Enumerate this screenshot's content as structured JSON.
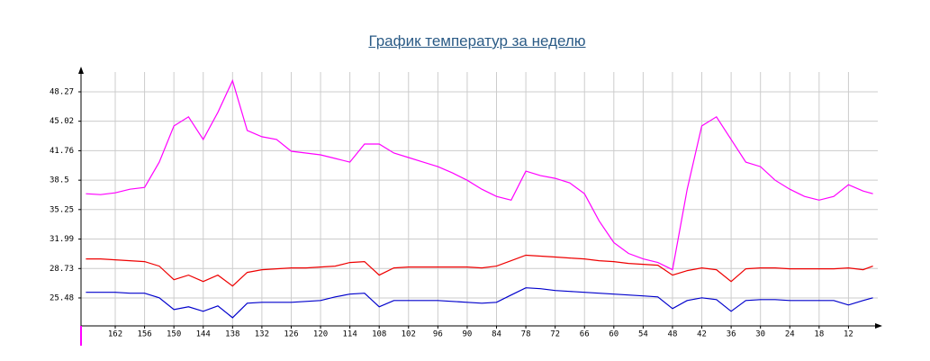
{
  "chart_data": {
    "type": "line",
    "title": "График температур за неделю",
    "x": [
      168,
      165,
      162,
      159,
      156,
      153,
      150,
      147,
      144,
      141,
      138,
      135,
      132,
      129,
      126,
      123,
      120,
      117,
      114,
      111,
      108,
      105,
      102,
      99,
      96,
      93,
      90,
      87,
      84,
      81,
      78,
      75,
      72,
      69,
      66,
      63,
      60,
      57,
      54,
      51,
      48,
      45,
      42,
      39,
      36,
      33,
      30,
      27,
      24,
      21,
      18,
      15,
      12,
      9,
      7
    ],
    "xlim": [
      169,
      6
    ],
    "xticks": [
      162,
      156,
      150,
      144,
      138,
      132,
      126,
      120,
      114,
      108,
      102,
      96,
      90,
      84,
      78,
      72,
      66,
      60,
      54,
      48,
      42,
      36,
      30,
      24,
      18,
      12
    ],
    "ylim": [
      22.39,
      50.46
    ],
    "yticks": [
      25.48,
      28.73,
      31.99,
      35.25,
      38.5,
      41.76,
      45.02,
      48.27
    ],
    "grid": true,
    "series": [
      {
        "color": "#ff00ff",
        "values": [
          37.0,
          36.9,
          37.1,
          37.5,
          37.7,
          40.5,
          44.5,
          45.5,
          43.0,
          46.0,
          49.5,
          44.0,
          43.3,
          43.0,
          41.7,
          41.5,
          41.3,
          40.9,
          40.5,
          42.5,
          42.5,
          41.5,
          41.0,
          40.5,
          40.0,
          39.3,
          38.5,
          37.5,
          36.7,
          36.3,
          39.5,
          39.0,
          38.7,
          38.2,
          37.0,
          34.0,
          31.6,
          30.4,
          29.8,
          29.4,
          28.6,
          37.5,
          44.5,
          45.5,
          43.0,
          40.5,
          40.0,
          38.5,
          37.5,
          36.7,
          36.3,
          36.7,
          38.0,
          37.3,
          37.0
        ]
      },
      {
        "color": "#ee0000",
        "values": [
          29.8,
          29.8,
          29.7,
          29.6,
          29.5,
          29.0,
          27.5,
          28.0,
          27.3,
          28.0,
          26.8,
          28.3,
          28.6,
          28.7,
          28.8,
          28.8,
          28.9,
          29.0,
          29.4,
          29.5,
          28.0,
          28.8,
          28.9,
          28.9,
          28.9,
          28.9,
          28.9,
          28.8,
          29.0,
          29.6,
          30.2,
          30.1,
          30.0,
          29.9,
          29.8,
          29.6,
          29.5,
          29.3,
          29.2,
          29.1,
          28.0,
          28.5,
          28.8,
          28.6,
          27.3,
          28.7,
          28.8,
          28.8,
          28.7,
          28.7,
          28.7,
          28.7,
          28.8,
          28.6,
          29.0
        ]
      },
      {
        "color": "#0000cc",
        "values": [
          26.1,
          26.1,
          26.1,
          26.0,
          26.0,
          25.5,
          24.2,
          24.5,
          24.0,
          24.6,
          23.3,
          24.9,
          25.0,
          25.0,
          25.0,
          25.1,
          25.2,
          25.6,
          25.9,
          26.0,
          24.5,
          25.2,
          25.2,
          25.2,
          25.2,
          25.1,
          25.0,
          24.9,
          25.0,
          25.8,
          26.6,
          26.5,
          26.3,
          26.2,
          26.1,
          26.0,
          25.9,
          25.8,
          25.7,
          25.6,
          24.3,
          25.2,
          25.5,
          25.3,
          24.0,
          25.2,
          25.3,
          25.3,
          25.2,
          25.2,
          25.2,
          25.2,
          24.7,
          25.2,
          25.5
        ]
      }
    ]
  }
}
